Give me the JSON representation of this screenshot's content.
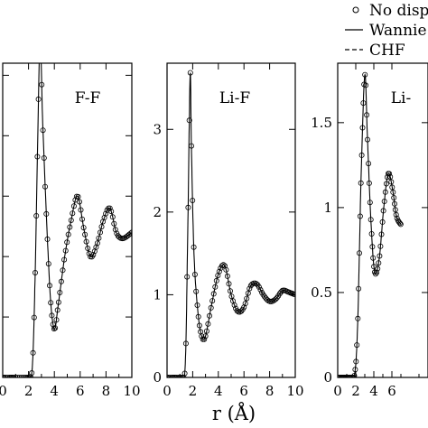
{
  "legend": [
    {
      "label": "No disp",
      "marker": "circle"
    },
    {
      "label": "Wannie",
      "marker": "solid-line"
    },
    {
      "label": "CHF",
      "marker": "dashed-line"
    }
  ],
  "xlabel": "r (Å)",
  "chart_data": [
    {
      "type": "line",
      "panel_label": "F-F",
      "xlim": [
        0,
        10
      ],
      "ylim": [
        0,
        2.6
      ],
      "x_ticks": [
        0,
        2,
        4,
        6,
        8,
        10
      ],
      "x_tick_labels": [
        "0",
        "2",
        "4",
        "6",
        "8",
        "10"
      ],
      "y_ticks": [
        0,
        0.5,
        1.0,
        1.5,
        2.0,
        2.5
      ],
      "y_tick_labels": [
        "",
        "",
        "",
        "",
        "",
        ""
      ],
      "series": [
        {
          "x": [
            0,
            1.0,
            2.0,
            2.3,
            2.5,
            2.7,
            2.9,
            3.1,
            3.4,
            3.7,
            4.0,
            4.3,
            4.8,
            5.3,
            5.8,
            6.3,
            6.8,
            7.3,
            7.8,
            8.3,
            8.8,
            9.3,
            10.0
          ],
          "y": [
            0,
            0,
            0,
            0.1,
            0.8,
            1.9,
            2.8,
            2.1,
            1.3,
            0.65,
            0.4,
            0.6,
            1.0,
            1.3,
            1.5,
            1.22,
            1.0,
            1.1,
            1.3,
            1.4,
            1.2,
            1.15,
            1.2
          ]
        }
      ]
    },
    {
      "type": "line",
      "panel_label": "Li-F",
      "xlim": [
        0,
        10
      ],
      "ylim": [
        0,
        3.8
      ],
      "x_ticks": [
        0,
        2,
        4,
        6,
        8,
        10
      ],
      "x_tick_labels": [
        "0",
        "2",
        "4",
        "6",
        "8",
        "10"
      ],
      "y_ticks": [
        0,
        1,
        2,
        3
      ],
      "y_tick_labels": [
        "0",
        "1",
        "2",
        "3"
      ],
      "series": [
        {
          "x": [
            0,
            1.0,
            1.4,
            1.6,
            1.8,
            1.9,
            2.1,
            2.4,
            2.7,
            3.0,
            3.5,
            4.0,
            4.5,
            5.0,
            5.5,
            6.0,
            6.5,
            7.0,
            7.5,
            8.0,
            8.5,
            9.0,
            9.5,
            10.0
          ],
          "y": [
            0,
            0,
            0.1,
            1.6,
            3.65,
            2.8,
            1.5,
            0.8,
            0.5,
            0.5,
            0.9,
            1.25,
            1.35,
            1.0,
            0.8,
            0.85,
            1.1,
            1.13,
            1.0,
            0.92,
            0.95,
            1.05,
            1.03,
            1.0
          ]
        }
      ]
    },
    {
      "type": "line",
      "panel_label": "Li-",
      "xlim": [
        0,
        10
      ],
      "ylim": [
        0,
        1.85
      ],
      "x_ticks": [
        0,
        2,
        4,
        6
      ],
      "x_tick_labels": [
        "0",
        "2",
        "4",
        "6"
      ],
      "y_ticks": [
        0,
        0.5,
        1,
        1.5
      ],
      "y_tick_labels": [
        "0",
        "0.5",
        "1",
        "1.5"
      ],
      "series": [
        {
          "x": [
            0,
            1.0,
            1.8,
            2.2,
            2.6,
            3.0,
            3.3,
            3.7,
            4.1,
            4.6,
            5.1,
            5.6,
            6.1,
            6.5,
            7.0
          ],
          "y": [
            0,
            0,
            0,
            0.3,
            1.2,
            1.78,
            1.4,
            0.9,
            0.62,
            0.7,
            1.0,
            1.2,
            1.1,
            0.95,
            0.9
          ]
        }
      ]
    }
  ]
}
